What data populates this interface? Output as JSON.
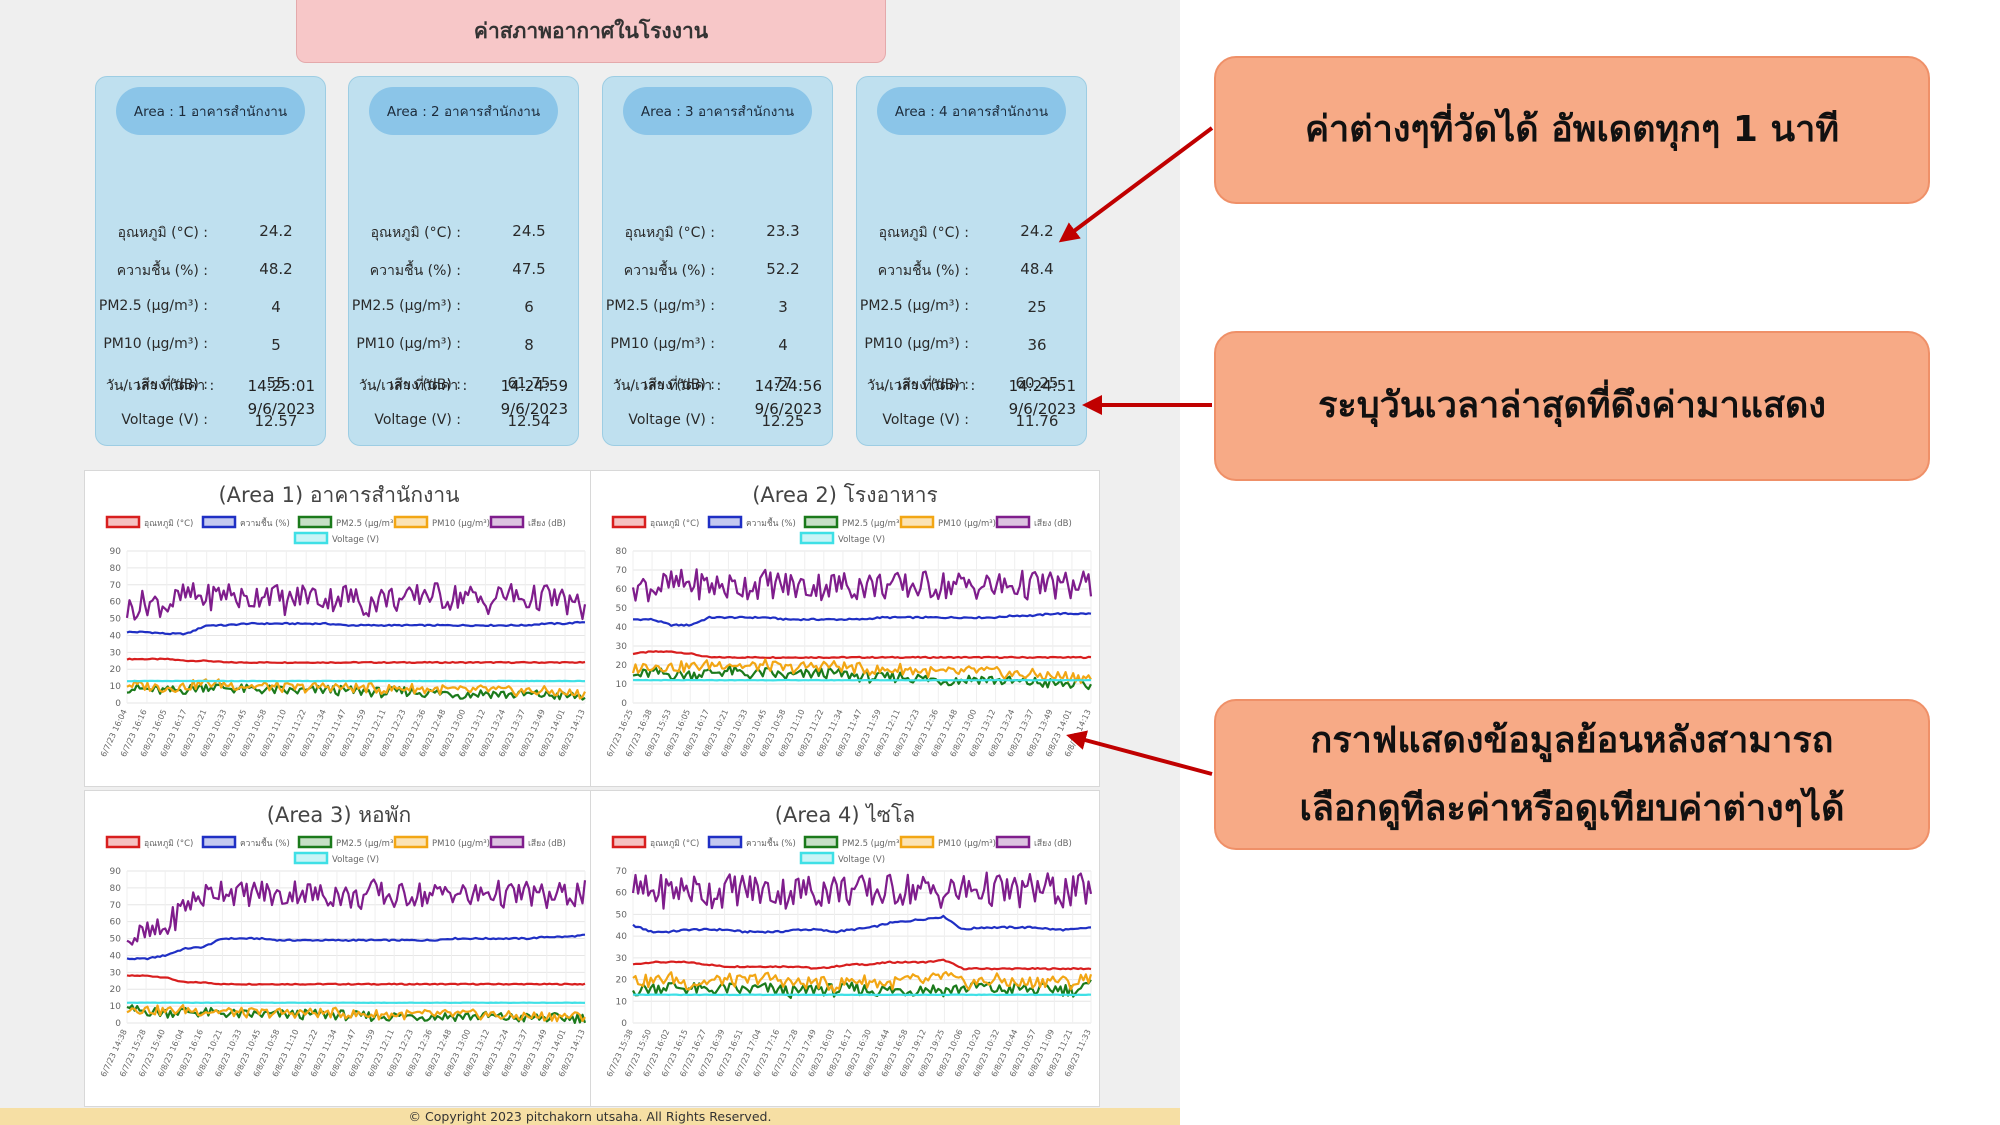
{
  "page_title": "ค่าสภาพอากาศในโรงงาน",
  "labels": {
    "temp": "อุณหภูมิ (°C) :",
    "humidity": "ความชื้น (%) :",
    "pm25": "PM2.5 (µg/m³) :",
    "pm10": "PM10 (µg/m³) :",
    "noise": "เสียง (dB) :",
    "voltage": "Voltage (V) :",
    "datetime": "วัน/เวลา ที่วัดค่า :"
  },
  "cards": [
    {
      "title": "Area : 1 อาคารสำนักงาน",
      "temp": "24.2",
      "humidity": "48.2",
      "pm25": "4",
      "pm10": "5",
      "noise": "55",
      "voltage": "12.57",
      "time": "14:25:01",
      "date": "9/6/2023"
    },
    {
      "title": "Area : 2 อาคารสำนักงาน",
      "temp": "24.5",
      "humidity": "47.5",
      "pm25": "6",
      "pm10": "8",
      "noise": "61.75",
      "voltage": "12.54",
      "time": "14:24:59",
      "date": "9/6/2023"
    },
    {
      "title": "Area : 3 อาคารสำนักงาน",
      "temp": "23.3",
      "humidity": "52.2",
      "pm25": "3",
      "pm10": "4",
      "noise": "77",
      "voltage": "12.25",
      "time": "14:24:56",
      "date": "9/6/2023"
    },
    {
      "title": "Area : 4 อาคารสำนักงาน",
      "temp": "24.2",
      "humidity": "48.4",
      "pm25": "25",
      "pm10": "36",
      "noise": "60.25",
      "voltage": "11.76",
      "time": "14:24:51",
      "date": "9/6/2023"
    }
  ],
  "legend": [
    {
      "name": "อุณหภูมิ (°C)",
      "color": "#d81e1e",
      "fill": "#f5c2c2"
    },
    {
      "name": "ความชื้น (%)",
      "color": "#1f2fc4",
      "fill": "#c4c9f0"
    },
    {
      "name": "PM2.5 (µg/m³)",
      "color": "#1b7a1b",
      "fill": "#c6e0c6"
    },
    {
      "name": "PM10 (µg/m³)",
      "color": "#f2a614",
      "fill": "#fbe3b5"
    },
    {
      "name": "เสียง (dB)",
      "color": "#7f1d8c",
      "fill": "#dcc3e0"
    },
    {
      "name": "Voltage (V)",
      "color": "#3fe0e6",
      "fill": "#c9f4f6"
    }
  ],
  "chart_data": [
    {
      "type": "line",
      "title": "(Area 1) อาคารสำนักงาน",
      "ylim": [
        0,
        90
      ],
      "yticks": [
        0,
        10,
        20,
        30,
        40,
        50,
        60,
        70,
        80,
        90
      ],
      "xticks": [
        "6/7/23 16:04",
        "6/7/23 16:16",
        "6/8/23 16:05",
        "6/8/23 16:17",
        "6/8/23 10:21",
        "6/8/23 10:33",
        "6/8/23 10:45",
        "6/8/23 10:58",
        "6/8/23 11:10",
        "6/8/23 11:22",
        "6/8/23 11:34",
        "6/8/23 11:47",
        "6/8/23 11:59",
        "6/8/23 12:11",
        "6/8/23 12:23",
        "6/8/23 12:36",
        "6/8/23 12:48",
        "6/8/23 13:00",
        "6/8/23 13:12",
        "6/8/23 13:24",
        "6/8/23 13:37",
        "6/8/23 13:49",
        "6/8/23 14:01",
        "6/8/23 14:13"
      ],
      "series": [
        {
          "name": "อุณหภูมิ (°C)",
          "values": [
            26,
            26,
            26,
            25,
            25,
            24,
            24,
            24,
            24,
            24,
            24,
            24,
            24,
            24,
            24,
            24,
            24,
            24,
            24,
            24,
            24,
            24,
            24,
            24
          ]
        },
        {
          "name": "ความชื้น (%)",
          "values": [
            42,
            42,
            41,
            41,
            46,
            46,
            47,
            47,
            47,
            47,
            47,
            46,
            46,
            46,
            46,
            46,
            46,
            46,
            46,
            46,
            46,
            47,
            47,
            48
          ]
        },
        {
          "name": "PM2.5 (µg/m³)",
          "values": [
            9,
            8,
            7,
            8,
            10,
            9,
            8,
            8,
            7,
            7,
            8,
            7,
            7,
            6,
            7,
            6,
            6,
            5,
            6,
            5,
            5,
            5,
            4,
            4
          ]
        },
        {
          "name": "PM10 (µg/m³)",
          "values": [
            11,
            10,
            9,
            10,
            12,
            11,
            10,
            10,
            9,
            9,
            10,
            9,
            9,
            8,
            9,
            8,
            8,
            7,
            8,
            7,
            7,
            7,
            6,
            5
          ]
        },
        {
          "name": "เสียง (dB)",
          "values": [
            55,
            60,
            58,
            64,
            62,
            66,
            60,
            67,
            59,
            65,
            61,
            64,
            58,
            63,
            60,
            66,
            62,
            64,
            59,
            65,
            61,
            63,
            60,
            55
          ]
        },
        {
          "name": "Voltage (V)",
          "values": [
            13,
            13,
            13,
            13,
            13,
            13,
            13,
            13,
            13,
            13,
            13,
            13,
            13,
            13,
            13,
            13,
            13,
            13,
            13,
            13,
            13,
            13,
            13,
            13
          ]
        }
      ]
    },
    {
      "type": "line",
      "title": "(Area 2) โรงอาหาร",
      "ylim": [
        0,
        80
      ],
      "yticks": [
        0,
        10,
        20,
        30,
        40,
        50,
        60,
        70,
        80
      ],
      "xticks": [
        "6/7/23 16:25",
        "6/7/23 16:38",
        "6/8/23 15:53",
        "6/8/23 16:05",
        "6/8/23 16:17",
        "6/8/23 10:21",
        "6/8/23 10:33",
        "6/8/23 10:45",
        "6/8/23 10:58",
        "6/8/23 11:10",
        "6/8/23 11:22",
        "6/8/23 11:34",
        "6/8/23 11:47",
        "6/8/23 11:59",
        "6/8/23 12:11",
        "6/8/23 12:23",
        "6/8/23 12:36",
        "6/8/23 12:48",
        "6/8/23 13:00",
        "6/8/23 13:12",
        "6/8/23 13:24",
        "6/8/23 13:37",
        "6/8/23 13:49",
        "6/8/23 14:01",
        "6/8/23 14:13"
      ],
      "series": [
        {
          "name": "อุณหภูมิ (°C)",
          "values": [
            26,
            27,
            27,
            26,
            24,
            24,
            24,
            24,
            24,
            24,
            24,
            24,
            24,
            24,
            24,
            24,
            24,
            24,
            24,
            24,
            24,
            24,
            24,
            24,
            24
          ]
        },
        {
          "name": "ความชื้น (%)",
          "values": [
            44,
            44,
            41,
            41,
            45,
            45,
            45,
            45,
            44,
            44,
            44,
            44,
            44,
            45,
            45,
            45,
            45,
            45,
            45,
            45,
            46,
            46,
            47,
            47,
            47
          ]
        },
        {
          "name": "PM2.5 (µg/m³)",
          "values": [
            14,
            16,
            15,
            15,
            16,
            17,
            15,
            16,
            14,
            15,
            16,
            15,
            14,
            13,
            14,
            13,
            12,
            12,
            13,
            12,
            11,
            11,
            10,
            10,
            9
          ]
        },
        {
          "name": "PM10 (µg/m³)",
          "values": [
            18,
            20,
            19,
            19,
            20,
            21,
            19,
            20,
            18,
            19,
            20,
            19,
            18,
            17,
            18,
            17,
            16,
            16,
            17,
            16,
            15,
            15,
            14,
            14,
            13
          ]
        },
        {
          "name": "เสียง (dB)",
          "values": [
            62,
            61,
            62,
            63,
            62,
            61,
            62,
            63,
            62,
            61,
            62,
            62,
            62,
            62,
            61,
            62,
            62,
            62,
            62,
            61,
            62,
            62,
            62,
            61,
            62
          ]
        },
        {
          "name": "Voltage (V)",
          "values": [
            12,
            12,
            12,
            12,
            12,
            12,
            12,
            12,
            12,
            12,
            12,
            12,
            12,
            12,
            12,
            12,
            12,
            12,
            12,
            12,
            12,
            12,
            12,
            12,
            12
          ]
        }
      ]
    },
    {
      "type": "line",
      "title": "(Area 3) หอพัก",
      "ylim": [
        0,
        90
      ],
      "yticks": [
        0,
        10,
        20,
        30,
        40,
        50,
        60,
        70,
        80,
        90
      ],
      "xticks": [
        "6/7/23 14:38",
        "6/7/23 15:28",
        "6/7/23 15:40",
        "6/8/23 16:04",
        "6/8/23 16:16",
        "6/8/23 10:21",
        "6/8/23 10:33",
        "6/8/23 10:45",
        "6/8/23 10:58",
        "6/8/23 11:10",
        "6/8/23 11:22",
        "6/8/23 11:34",
        "6/8/23 11:47",
        "6/8/23 11:59",
        "6/8/23 12:11",
        "6/8/23 12:23",
        "6/8/23 12:36",
        "6/8/23 12:48",
        "6/8/23 13:00",
        "6/8/23 13:12",
        "6/8/23 13:24",
        "6/8/23 13:37",
        "6/8/23 13:49",
        "6/8/23 14:01",
        "6/8/23 14:13"
      ],
      "series": [
        {
          "name": "อุณหภูมิ (°C)",
          "values": [
            28,
            28,
            27,
            24,
            24,
            23,
            23,
            23,
            23,
            23,
            23,
            23,
            23,
            23,
            23,
            23,
            23,
            23,
            23,
            23,
            23,
            23,
            23,
            23,
            23
          ]
        },
        {
          "name": "ความชื้น (%)",
          "values": [
            38,
            38,
            40,
            44,
            45,
            50,
            50,
            50,
            49,
            49,
            49,
            49,
            49,
            49,
            49,
            49,
            49,
            50,
            50,
            50,
            50,
            50,
            51,
            51,
            52
          ]
        },
        {
          "name": "PM2.5 (µg/m³)",
          "values": [
            8,
            7,
            6,
            7,
            6,
            6,
            5,
            5,
            5,
            5,
            5,
            5,
            4,
            4,
            4,
            4,
            4,
            4,
            4,
            4,
            3,
            3,
            3,
            3,
            3
          ]
        },
        {
          "name": "PM10 (µg/m³)",
          "values": [
            9,
            8,
            7,
            8,
            7,
            7,
            6,
            6,
            6,
            6,
            6,
            6,
            5,
            5,
            5,
            5,
            5,
            5,
            5,
            5,
            4,
            4,
            4,
            4,
            4
          ]
        },
        {
          "name": "เสียง (dB)",
          "values": [
            50,
            52,
            55,
            70,
            75,
            80,
            76,
            78,
            74,
            79,
            75,
            77,
            73,
            78,
            74,
            77,
            75,
            79,
            74,
            78,
            75,
            77,
            74,
            76,
            77
          ]
        },
        {
          "name": "Voltage (V)",
          "values": [
            12,
            12,
            12,
            12,
            12,
            12,
            12,
            12,
            12,
            12,
            12,
            12,
            12,
            12,
            12,
            12,
            12,
            12,
            12,
            12,
            12,
            12,
            12,
            12,
            12
          ]
        }
      ]
    },
    {
      "type": "line",
      "title": "(Area 4) ไซโล",
      "ylim": [
        0,
        70
      ],
      "yticks": [
        0,
        10,
        20,
        30,
        40,
        50,
        60,
        70
      ],
      "xticks": [
        "6/7/23 15:38",
        "6/7/23 15:50",
        "6/7/23 16:02",
        "6/7/23 16:15",
        "6/7/23 16:27",
        "6/7/23 16:39",
        "6/7/23 16:51",
        "6/7/23 17:04",
        "6/7/23 17:16",
        "6/7/23 17:28",
        "6/7/23 17:49",
        "6/8/23 16:03",
        "6/8/23 16:17",
        "6/8/23 16:30",
        "6/8/23 16:44",
        "6/8/23 16:58",
        "6/8/23 19:12",
        "6/8/23 19:25",
        "6/8/23 10:06",
        "6/8/23 10:20",
        "6/8/23 10:32",
        "6/8/23 10:44",
        "6/8/23 10:57",
        "6/8/23 11:09",
        "6/8/23 11:21",
        "6/8/23 11:33"
      ],
      "series": [
        {
          "name": "อุณหภูมิ (°C)",
          "values": [
            27,
            28,
            28,
            28,
            27,
            26,
            26,
            26,
            26,
            26,
            25,
            26,
            27,
            27,
            28,
            28,
            28,
            29,
            25,
            25,
            25,
            25,
            25,
            25,
            25,
            25
          ]
        },
        {
          "name": "ความชื้น (%)",
          "values": [
            45,
            42,
            42,
            43,
            43,
            43,
            42,
            42,
            42,
            43,
            43,
            42,
            43,
            44,
            46,
            47,
            48,
            49,
            43,
            44,
            44,
            44,
            44,
            43,
            43,
            44
          ]
        },
        {
          "name": "PM2.5 (µg/m³)",
          "values": [
            15,
            16,
            17,
            16,
            15,
            16,
            15,
            16,
            15,
            14,
            16,
            15,
            16,
            15,
            15,
            15,
            16,
            15,
            16,
            17,
            15,
            16,
            15,
            16,
            15,
            17
          ]
        },
        {
          "name": "PM10 (µg/m³)",
          "values": [
            20,
            19,
            21,
            18,
            19,
            20,
            19,
            21,
            20,
            18,
            19,
            17,
            20,
            19,
            18,
            20,
            19,
            22,
            18,
            19,
            20,
            18,
            19,
            20,
            18,
            22
          ]
        },
        {
          "name": "เสียง (dB)",
          "values": [
            61,
            60,
            61,
            62,
            60,
            61,
            62,
            61,
            60,
            61,
            61,
            62,
            61,
            60,
            61,
            62,
            61,
            60,
            61,
            62,
            61,
            60,
            62,
            61,
            60,
            62
          ]
        },
        {
          "name": "Voltage (V)",
          "values": [
            13,
            13,
            13,
            13,
            13,
            13,
            13,
            13,
            13,
            13,
            13,
            13,
            13,
            13,
            13,
            13,
            13,
            13,
            13,
            13,
            13,
            13,
            13,
            13,
            13,
            13
          ]
        }
      ]
    }
  ],
  "footer": "© Copyright 2023 pitchakorn utsaha. All Rights Reserved.",
  "notes": {
    "n1": "ค่าต่างๆที่วัดได้ อัพเดตทุกๆ 1 นาที",
    "n2": "ระบุวันเวลาล่าสุดที่ดึงค่ามาแสดง",
    "n3a": "กราฟแสดงข้อมูลย้อนหลังสามารถ",
    "n3b": "เลือกดูทีละค่าหรือดูเทียบค่าต่างๆได้"
  },
  "colors": {
    "arrow": "#c00000",
    "note_bg": "#f7aa86",
    "card_bg": "#bfe0ef",
    "card_head": "#8bc5e8",
    "title_bg": "#f7c7c8",
    "footer_bg": "#f6dfa4"
  }
}
